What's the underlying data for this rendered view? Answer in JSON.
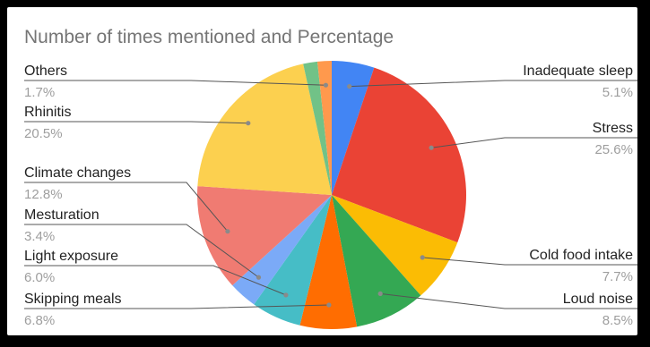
{
  "chart_data": {
    "type": "pie",
    "title": "Number of times mentioned and Percentage",
    "slices": [
      {
        "label": "Inadequate sleep",
        "pct_text": "5.1%",
        "value": 5.1,
        "color": "#4285f4"
      },
      {
        "label": "Stress",
        "pct_text": "25.6%",
        "value": 25.6,
        "color": "#ea4335"
      },
      {
        "label": "Cold food intake",
        "pct_text": "7.7%",
        "value": 7.7,
        "color": "#fbbc04"
      },
      {
        "label": "Loud noise ",
        "pct_text": "8.5%",
        "value": 8.5,
        "color": "#34a853"
      },
      {
        "label": "Skipping meals",
        "pct_text": "6.8%",
        "value": 6.8,
        "color": "#ff6d01"
      },
      {
        "label": "Light exposure",
        "pct_text": "6.0%",
        "value": 6.0,
        "color": "#46bdc6"
      },
      {
        "label": "Mesturation",
        "pct_text": "3.4%",
        "value": 3.4,
        "color": "#7baaf7"
      },
      {
        "label": "Climate changes",
        "pct_text": "12.8%",
        "value": 12.8,
        "color": "#f07b72"
      },
      {
        "label": "Rhinitis",
        "pct_text": "20.5%",
        "value": 20.5,
        "color": "#fcd04f"
      },
      {
        "label": "",
        "pct_text": "",
        "value": 1.7,
        "color": "#71c287"
      },
      {
        "label": "Others",
        "pct_text": "1.7%",
        "value": 1.7,
        "color": "#ff994d"
      }
    ],
    "legend": "leader-lines"
  }
}
